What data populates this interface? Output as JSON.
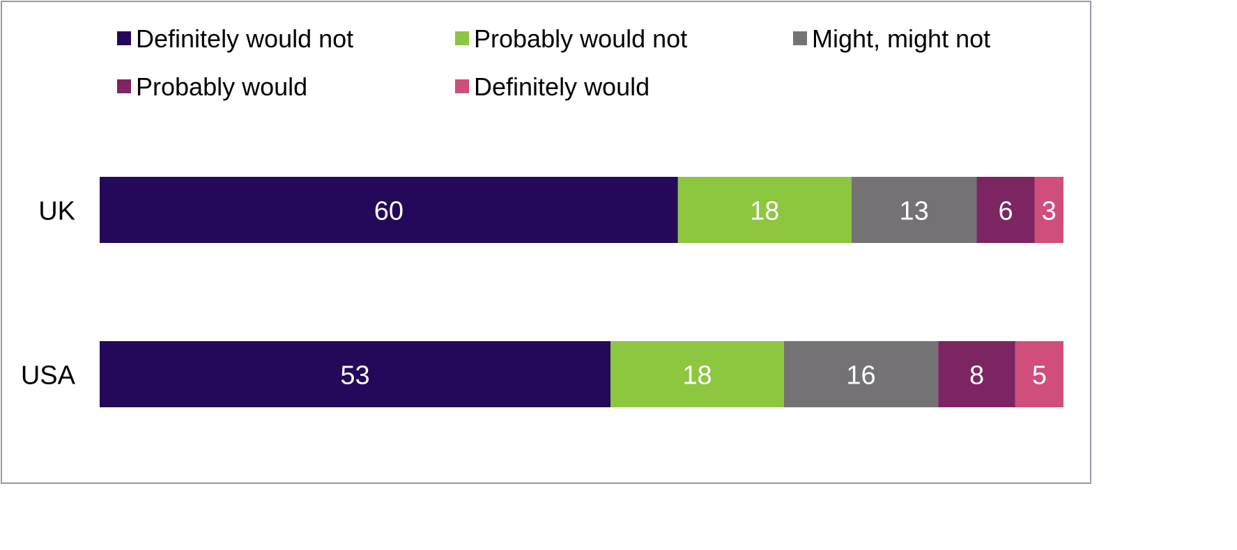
{
  "chart_data": {
    "type": "bar",
    "orientation": "horizontal",
    "stacked": true,
    "categories": [
      "UK",
      "USA"
    ],
    "series": [
      {
        "name": "Definitely would not",
        "color": "#24095a",
        "values": [
          60,
          53
        ]
      },
      {
        "name": "Probably would not",
        "color": "#8dc63f",
        "values": [
          18,
          18
        ]
      },
      {
        "name": "Might, might not",
        "color": "#747275",
        "values": [
          13,
          16
        ]
      },
      {
        "name": "Probably would",
        "color": "#7d2463",
        "values": [
          6,
          8
        ]
      },
      {
        "name": "Definitely would",
        "color": "#cf4e7b",
        "values": [
          3,
          5
        ]
      }
    ],
    "xlim": [
      0,
      100
    ],
    "grid": false,
    "legend_position": "top",
    "data_labels": true
  }
}
